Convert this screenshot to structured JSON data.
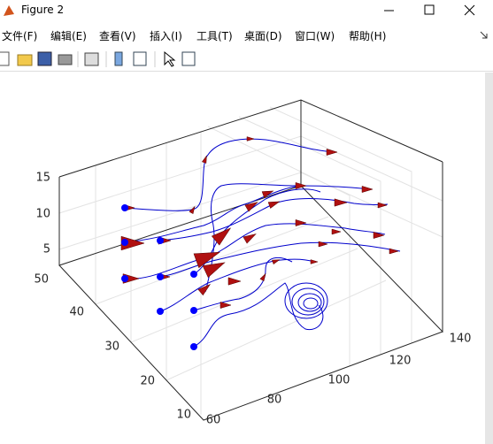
{
  "window": {
    "title": "Figure 2"
  },
  "menu": [
    "文件(F)",
    "编辑(E)",
    "查看(V)",
    "插入(I)",
    "工具(T)",
    "桌面(D)",
    "窗口(W)",
    "帮助(H)"
  ],
  "axes": {
    "zticks": [
      5,
      10,
      15
    ],
    "yticks": [
      10,
      20,
      30,
      40,
      50
    ],
    "xticks": [
      60,
      80,
      100,
      120,
      140
    ]
  }
}
